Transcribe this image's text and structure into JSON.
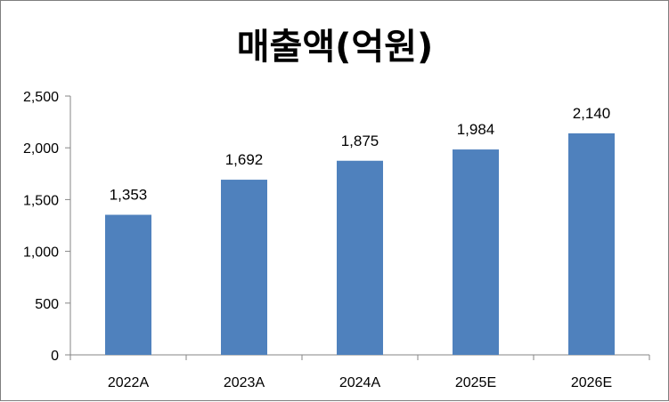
{
  "chart_data": {
    "type": "bar",
    "title": "매출액(억원)",
    "categories": [
      "2022A",
      "2023A",
      "2024A",
      "2025E",
      "2026E"
    ],
    "values": [
      1353,
      1692,
      1875,
      1984,
      2140
    ],
    "data_labels": [
      "1,353",
      "1,692",
      "1,875",
      "1,984",
      "2,140"
    ],
    "ylim": [
      0,
      2500
    ],
    "yticks": [
      0,
      500,
      1000,
      1500,
      2000,
      2500
    ],
    "ytick_labels": [
      "0",
      "500",
      "1,000",
      "1,500",
      "2,000",
      "2,500"
    ],
    "grid": false,
    "legend": "none",
    "bar_color": "#4f81bd",
    "axis_color": "#868686"
  }
}
